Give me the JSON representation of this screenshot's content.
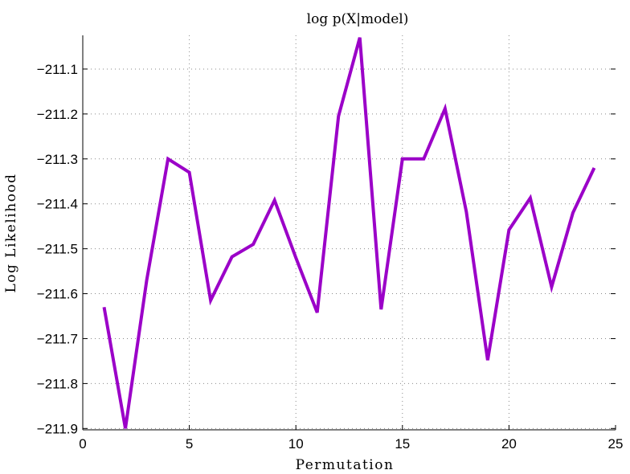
{
  "chart_data": {
    "type": "line",
    "title": "log p(X|model)",
    "xlabel": "Permutation",
    "ylabel": "Log Likelihood",
    "xlim": [
      0,
      25
    ],
    "ylim": [
      -211.903,
      -211.025
    ],
    "x_ticks": [
      0,
      5,
      10,
      15,
      20,
      25
    ],
    "x_tick_labels": [
      "0",
      "5",
      "10",
      "15",
      "20",
      "25"
    ],
    "y_ticks": [
      -211.9,
      -211.8,
      -211.7,
      -211.6,
      -211.5,
      -211.4,
      -211.3,
      -211.2,
      -211.1
    ],
    "y_tick_labels": [
      "−211.9",
      "−211.8",
      "−211.7",
      "−211.6",
      "−211.5",
      "−211.4",
      "−211.3",
      "−211.2",
      "−211.1"
    ],
    "grid": true,
    "line_color": "#9b00c8",
    "series": [
      {
        "x": [
          1,
          2,
          3,
          4,
          5,
          6,
          7,
          8,
          9,
          10,
          11,
          12,
          13,
          14,
          15,
          16,
          17,
          18,
          19,
          20,
          21,
          22,
          23,
          24
        ],
        "values": [
          -211.63,
          -211.9,
          -211.57,
          -211.3,
          -211.33,
          -211.615,
          -211.518,
          -211.49,
          -211.392,
          -211.52,
          -211.642,
          -211.205,
          -211.03,
          -211.635,
          -211.3,
          -211.3,
          -211.188,
          -211.418,
          -211.748,
          -211.458,
          -211.387,
          -211.585,
          -211.42,
          -211.32
        ]
      }
    ]
  }
}
